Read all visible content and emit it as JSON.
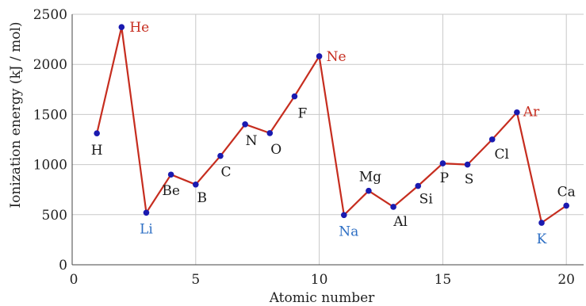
{
  "chart_data": {
    "type": "line",
    "xlabel": "Atomic number",
    "ylabel": "Ionization energy (kJ / mol)",
    "xlim": [
      0,
      20.7
    ],
    "ylim": [
      0,
      2500
    ],
    "xticks": [
      0,
      5,
      10,
      15,
      20
    ],
    "yticks": [
      0,
      500,
      1000,
      1500,
      2000,
      2500
    ],
    "grid": true,
    "line_color": "#c62d1f",
    "marker_color": "#1a1ab0",
    "label_colors": {
      "noble": "#c62d1f",
      "alkali": "#2e6fc4",
      "other": "#1a1a1a"
    },
    "points": [
      {
        "x": 1,
        "y": 1312,
        "label": "H",
        "group": "other"
      },
      {
        "x": 2,
        "y": 2372,
        "label": "He",
        "group": "noble"
      },
      {
        "x": 3,
        "y": 520,
        "label": "Li",
        "group": "alkali"
      },
      {
        "x": 4,
        "y": 900,
        "label": "Be",
        "group": "other"
      },
      {
        "x": 5,
        "y": 801,
        "label": "B",
        "group": "other"
      },
      {
        "x": 6,
        "y": 1086,
        "label": "C",
        "group": "other"
      },
      {
        "x": 7,
        "y": 1402,
        "label": "N",
        "group": "other"
      },
      {
        "x": 8,
        "y": 1314,
        "label": "O",
        "group": "other"
      },
      {
        "x": 9,
        "y": 1681,
        "label": "F",
        "group": "other"
      },
      {
        "x": 10,
        "y": 2081,
        "label": "Ne",
        "group": "noble"
      },
      {
        "x": 11,
        "y": 496,
        "label": "Na",
        "group": "alkali"
      },
      {
        "x": 12,
        "y": 738,
        "label": "Mg",
        "group": "other"
      },
      {
        "x": 13,
        "y": 578,
        "label": "Al",
        "group": "other"
      },
      {
        "x": 14,
        "y": 787,
        "label": "Si",
        "group": "other"
      },
      {
        "x": 15,
        "y": 1012,
        "label": "P",
        "group": "other"
      },
      {
        "x": 16,
        "y": 1000,
        "label": "S",
        "group": "other"
      },
      {
        "x": 17,
        "y": 1251,
        "label": "Cl",
        "group": "other"
      },
      {
        "x": 18,
        "y": 1521,
        "label": "Ar",
        "group": "noble"
      },
      {
        "x": 19,
        "y": 419,
        "label": "K",
        "group": "alkali"
      },
      {
        "x": 20,
        "y": 590,
        "label": "Ca",
        "group": "other"
      }
    ]
  }
}
